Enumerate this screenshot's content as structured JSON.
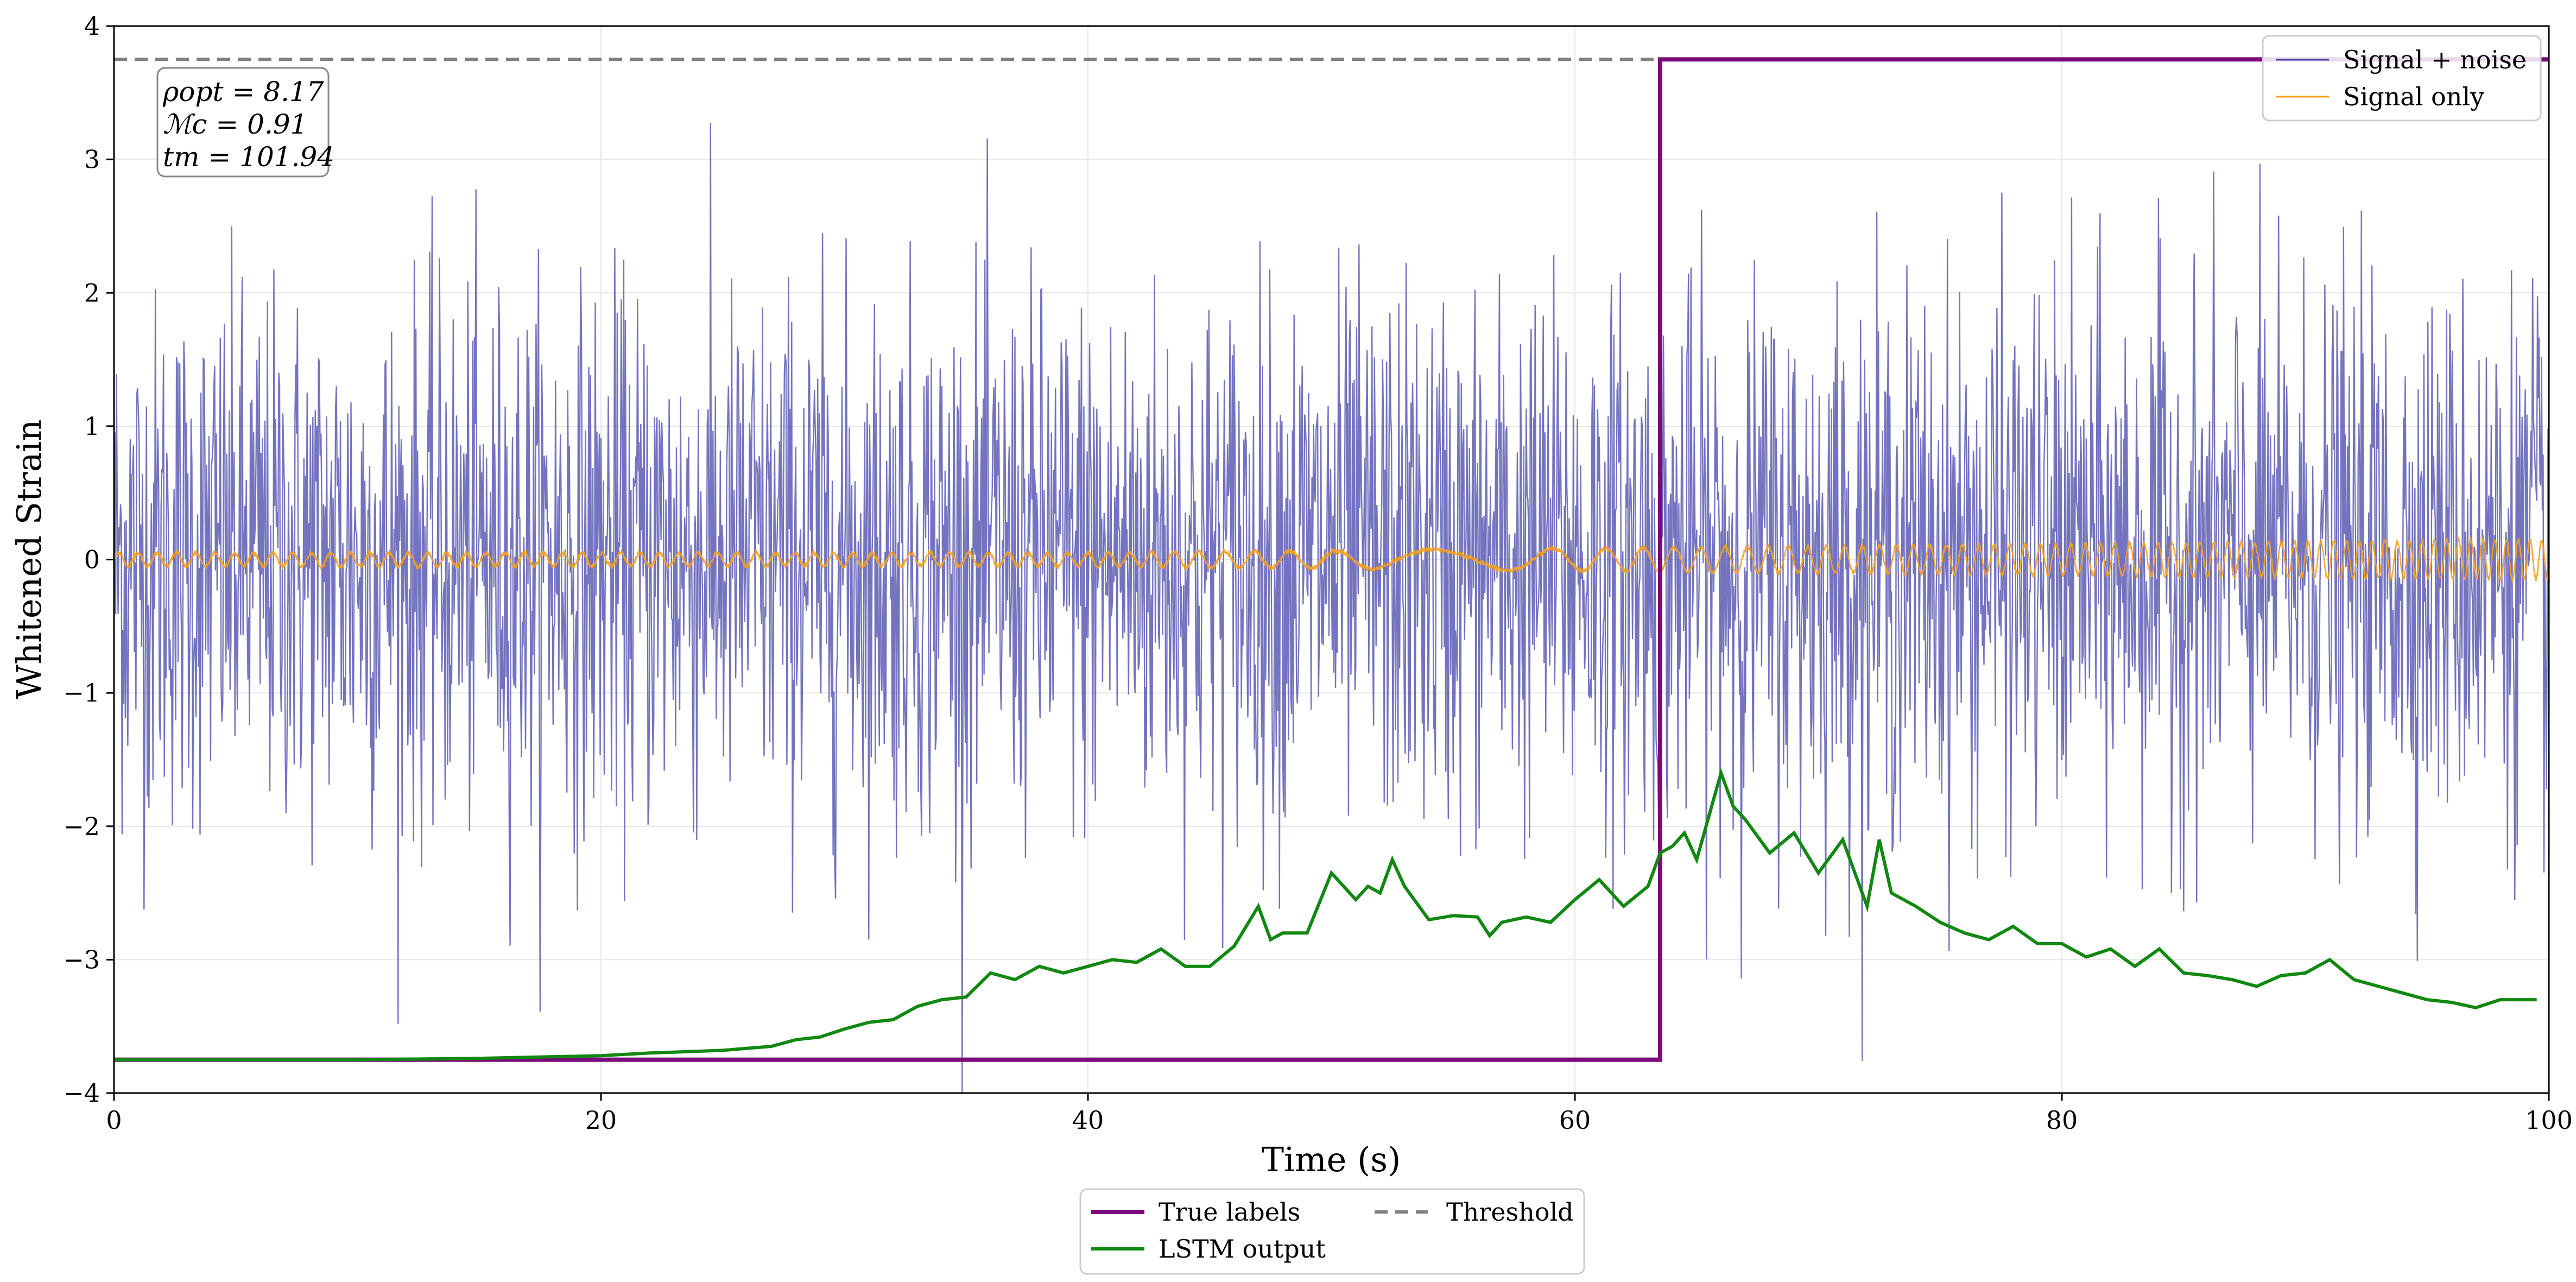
{
  "chart_data": {
    "type": "line",
    "title": "",
    "xlabel": "Time (s)",
    "ylabel": "Whitened Strain",
    "xlim": [
      0,
      100
    ],
    "ylim": [
      -4,
      4
    ],
    "x_ticks": [
      0,
      20,
      40,
      60,
      80,
      100
    ],
    "y_ticks": [
      -4,
      -3,
      -2,
      -1,
      0,
      1,
      2,
      3,
      4
    ],
    "x_tick_labels": [
      "0",
      "20",
      "40",
      "60",
      "80",
      "100"
    ],
    "y_tick_labels": [
      "−4",
      "−3",
      "−2",
      "−1",
      "0",
      "1",
      "2",
      "3",
      "4"
    ],
    "grid": true,
    "annotation": {
      "lines": [
        "ρopt = 8.17",
        "ℳc = 0.91",
        "tm = 101.94"
      ]
    },
    "legend_top": {
      "placement": "top-right",
      "entries": [
        "Signal + noise",
        "Signal only"
      ]
    },
    "legend_bottom": {
      "placement": "below-plot",
      "entries": [
        "True labels",
        "Threshold",
        "LSTM output"
      ]
    },
    "series": [
      {
        "name": "Signal + noise",
        "color": "#4444aa",
        "style": "noise",
        "amplitude_sd": 1.0,
        "x_range": [
          0,
          100
        ]
      },
      {
        "name": "Signal only",
        "color": "#f5a020",
        "style": "chirp",
        "amplitude_range": [
          0.05,
          0.15
        ],
        "x_range": [
          0,
          100
        ]
      },
      {
        "name": "True labels",
        "color": "#7a0a7a",
        "style": "step",
        "x": [
          0,
          63.5,
          63.5,
          100
        ],
        "y": [
          -3.75,
          -3.75,
          3.75,
          3.75
        ]
      },
      {
        "name": "Threshold",
        "color": "#808080",
        "style": "dashed",
        "y": 3.75
      },
      {
        "name": "LSTM output",
        "color": "#118811",
        "style": "line",
        "x": [
          0,
          10,
          15,
          20,
          22,
          25,
          27,
          28,
          29,
          30,
          31,
          32,
          33,
          34,
          35,
          36,
          37,
          38,
          39,
          40,
          41,
          42,
          43,
          44,
          45,
          46,
          47,
          47.5,
          48,
          49,
          50,
          51,
          51.5,
          52,
          52.5,
          53,
          54,
          55,
          56,
          56.5,
          57,
          58,
          59,
          60,
          61,
          62,
          63,
          63.5,
          64,
          64.5,
          65,
          66,
          66.5,
          67,
          68,
          69,
          70,
          71,
          72,
          72.5,
          73,
          74,
          75,
          76,
          77,
          78,
          79,
          80,
          81,
          82,
          83,
          84,
          85,
          86,
          87,
          88,
          89,
          90,
          91,
          92,
          93,
          94,
          95,
          96,
          97,
          98,
          99,
          99.5
        ],
        "y": [
          -3.75,
          -3.75,
          -3.74,
          -3.72,
          -3.7,
          -3.68,
          -3.65,
          -3.6,
          -3.58,
          -3.52,
          -3.47,
          -3.45,
          -3.35,
          -3.3,
          -3.28,
          -3.1,
          -3.15,
          -3.05,
          -3.1,
          -3.05,
          -3.0,
          -3.02,
          -2.92,
          -3.05,
          -3.05,
          -2.9,
          -2.6,
          -2.85,
          -2.8,
          -2.8,
          -2.35,
          -2.55,
          -2.45,
          -2.5,
          -2.25,
          -2.45,
          -2.7,
          -2.67,
          -2.68,
          -2.82,
          -2.72,
          -2.68,
          -2.72,
          -2.55,
          -2.4,
          -2.6,
          -2.45,
          -2.2,
          -2.15,
          -2.05,
          -2.25,
          -1.6,
          -1.85,
          -1.95,
          -2.2,
          -2.05,
          -2.35,
          -2.1,
          -2.6,
          -2.1,
          -2.5,
          -2.6,
          -2.72,
          -2.8,
          -2.85,
          -2.75,
          -2.88,
          -2.88,
          -2.98,
          -2.92,
          -3.05,
          -2.92,
          -3.1,
          -3.12,
          -3.15,
          -3.2,
          -3.12,
          -3.1,
          -3.0,
          -3.15,
          -3.2,
          -3.25,
          -3.3,
          -3.32,
          -3.36,
          -3.3,
          -3.3,
          -3.3
        ]
      }
    ]
  }
}
